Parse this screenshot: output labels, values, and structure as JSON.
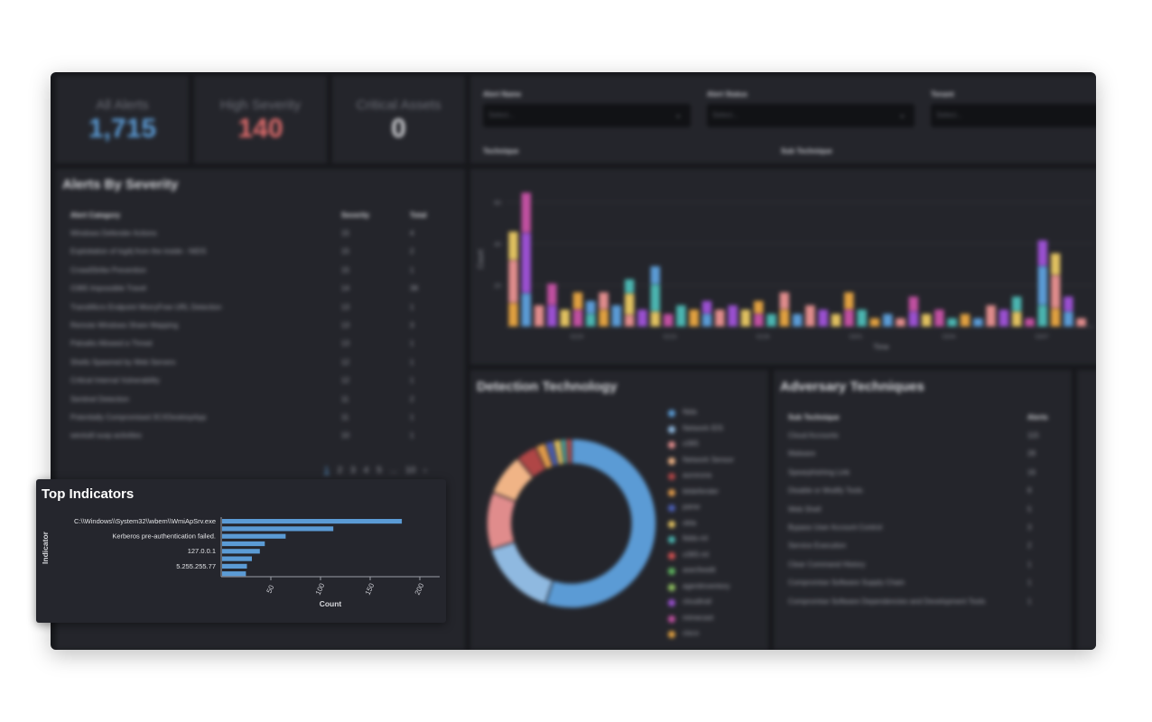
{
  "kpis": [
    {
      "label": "All Alerts",
      "value": "1,715",
      "color": "#5b9bd5"
    },
    {
      "label": "High Severity",
      "value": "140",
      "color": "#e06c6c"
    },
    {
      "label": "Critical Assets",
      "value": "0",
      "color": "#cfd0d4"
    }
  ],
  "filters": {
    "alert_name_label": "Alert Name",
    "alert_status_label": "Alert Status",
    "tenant_label": "Tenant",
    "technique_label": "Technique",
    "sub_technique_label": "Sub Technique",
    "placeholder": "Select..."
  },
  "severity_table": {
    "title": "Alerts By Severity",
    "columns": [
      "Alert Category",
      "Severity",
      "Total"
    ],
    "rows": [
      [
        "Windows Defender Actions",
        "15",
        "4"
      ],
      [
        "Exploitation of log4j from the inside - NIDS",
        "15",
        "2"
      ],
      [
        "CrowdStrike Prevention",
        "15",
        "1"
      ],
      [
        "O365 Impossible Travel",
        "14",
        "38"
      ],
      [
        "TransMicro Endpoint WorryFree URL Detection",
        "13",
        "1"
      ],
      [
        "Remote Windows Share Mapping",
        "13",
        "3"
      ],
      [
        "Paloalto Allowed a Threat",
        "13",
        "1"
      ],
      [
        "Shells Spawned by Web Servers",
        "12",
        "1"
      ],
      [
        "Critical Internal Vulnerability",
        "12",
        "1"
      ],
      [
        "Sentinel Detection",
        "11",
        "2"
      ],
      [
        "Potentially Compromised 3CXDesktopApp",
        "11",
        "1"
      ],
      [
        "wevtutil susp activities",
        "10",
        "1"
      ]
    ],
    "pager": [
      "1",
      "2",
      "3",
      "4",
      "5",
      "...",
      "10",
      "›"
    ]
  },
  "time_chart": {
    "ylabel": "Count",
    "xlabel": "Time",
    "yticks": [
      "20",
      "40",
      "60"
    ],
    "xticks": [
      "02/20",
      "02/23",
      "02/26",
      "03/01",
      "03/04",
      "03/07"
    ]
  },
  "detection": {
    "title": "Detection Technology",
    "legend": [
      {
        "name": "Nids",
        "color": "#5b9bd5"
      },
      {
        "name": "Network IDS",
        "color": "#8fb9e0"
      },
      {
        "name": "o365",
        "color": "#e08c8c"
      },
      {
        "name": "Network Sensor",
        "color": "#f0b486"
      },
      {
        "name": "auroruna",
        "color": "#b04646"
      },
      {
        "name": "bitdefender",
        "color": "#e09a4a"
      },
      {
        "name": "panw",
        "color": "#4b5fb5"
      },
      {
        "name": "okta",
        "color": "#e0c060"
      },
      {
        "name": "fidds-ml",
        "color": "#4bb5b0"
      },
      {
        "name": "o365-ml",
        "color": "#d05050"
      },
      {
        "name": "asecfeedit",
        "color": "#5fb55f"
      },
      {
        "name": "agentinventory",
        "color": "#8fc060"
      },
      {
        "name": "cloudtrail",
        "color": "#9a50d0"
      },
      {
        "name": "mimecast",
        "color": "#c050a0"
      },
      {
        "name": "cisco",
        "color": "#e0a040"
      }
    ],
    "donut_values": [
      55,
      15,
      11,
      8,
      4,
      2,
      1.5,
      1.5,
      1,
      1
    ]
  },
  "adversary": {
    "title": "Adversary Techniques",
    "columns": [
      "Sub Technique",
      "Alerts"
    ],
    "rows": [
      [
        "Cloud Accounts",
        "115"
      ],
      [
        "Malware",
        "28"
      ],
      [
        "Spearphishing Link",
        "16"
      ],
      [
        "Disable or Modify Tools",
        "8"
      ],
      [
        "Web Shell",
        "5"
      ],
      [
        "Bypass User Account Control",
        "3"
      ],
      [
        "Service Execution",
        "2"
      ],
      [
        "Clear Command History",
        "1"
      ],
      [
        "Compromise Software Supply Chain",
        "1"
      ],
      [
        "Compromise Software Dependencies and Development Tools",
        "1"
      ]
    ]
  },
  "top_indicators": {
    "title": "Top Indicators",
    "chart_data": {
      "type": "bar",
      "orientation": "horizontal",
      "ylabel": "Indicator",
      "xlabel": "Count",
      "xticks": [
        50,
        100,
        150,
        200
      ],
      "xlim": [
        0,
        220
      ],
      "categories": [
        "C:\\\\Windows\\\\System32\\\\wbem\\\\WmiApSrv.exe",
        "",
        "Kerberos pre-authentication failed.",
        "",
        "127.0.0.1",
        "",
        "5.255.255.77",
        ""
      ],
      "values": [
        181,
        112,
        64,
        43,
        38,
        30,
        25,
        24
      ],
      "bar_color": "#5b9bd5"
    }
  }
}
